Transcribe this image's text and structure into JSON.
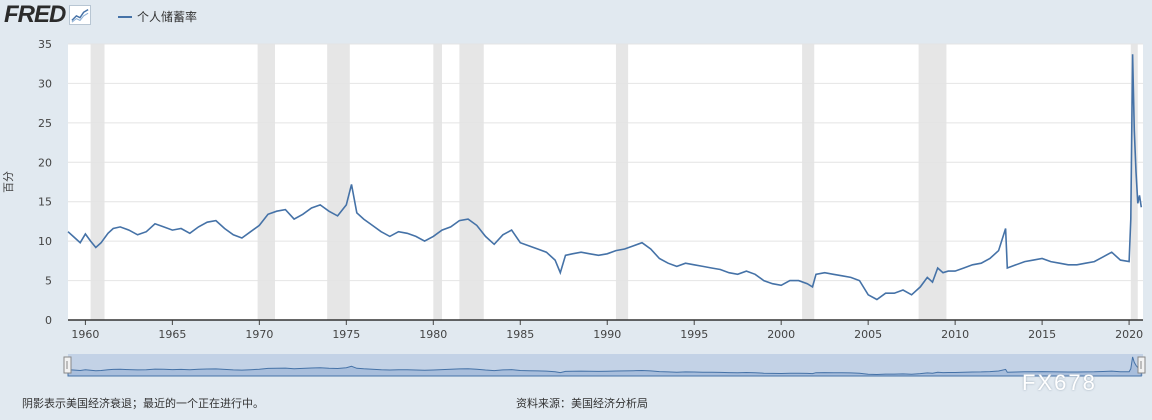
{
  "header": {
    "logo_text": "FRED",
    "logo_icon": "chart-line-icon",
    "legend_label": "个人储蓄率"
  },
  "footer": {
    "note": "阴影表示美国经济衰退；最近的一个正在进行中。",
    "source": "资料来源：美国经济分析局"
  },
  "watermark": "FX678",
  "chart_data": {
    "type": "line",
    "title": "",
    "ylabel": "百分",
    "xlabel": "",
    "ylim": [
      0,
      35
    ],
    "xlim": [
      1959.0,
      2020.8
    ],
    "yticks": [
      0,
      5,
      10,
      15,
      20,
      25,
      30,
      35
    ],
    "xticks": [
      1960,
      1965,
      1970,
      1975,
      1980,
      1985,
      1990,
      1995,
      2000,
      2005,
      2010,
      2015,
      2020
    ],
    "grid": "horizontal",
    "legend": "top-left",
    "color": "#4572a7",
    "recessions": [
      [
        1960.3,
        1961.1
      ],
      [
        1969.9,
        1970.9
      ],
      [
        1973.9,
        1975.2
      ],
      [
        1980.0,
        1980.5
      ],
      [
        1981.5,
        1982.9
      ],
      [
        1990.5,
        1991.2
      ],
      [
        2001.2,
        2001.9
      ],
      [
        2007.9,
        2009.5
      ],
      [
        2020.1,
        2020.5
      ]
    ],
    "series": [
      {
        "name": "个人储蓄率",
        "x": [
          1959.0,
          1959.3,
          1959.7,
          1960.0,
          1960.3,
          1960.6,
          1960.9,
          1961.3,
          1961.6,
          1962.0,
          1962.5,
          1963.0,
          1963.5,
          1964.0,
          1964.5,
          1965.0,
          1965.5,
          1966.0,
          1966.5,
          1967.0,
          1967.5,
          1968.0,
          1968.5,
          1969.0,
          1969.5,
          1970.0,
          1970.5,
          1971.0,
          1971.5,
          1972.0,
          1972.5,
          1973.0,
          1973.5,
          1974.0,
          1974.5,
          1975.0,
          1975.3,
          1975.6,
          1976.0,
          1976.5,
          1977.0,
          1977.5,
          1978.0,
          1978.5,
          1979.0,
          1979.5,
          1980.0,
          1980.5,
          1981.0,
          1981.5,
          1982.0,
          1982.5,
          1983.0,
          1983.5,
          1984.0,
          1984.5,
          1985.0,
          1985.5,
          1986.0,
          1986.5,
          1987.0,
          1987.3,
          1987.6,
          1988.0,
          1988.5,
          1989.0,
          1989.5,
          1990.0,
          1990.5,
          1991.0,
          1991.5,
          1992.0,
          1992.5,
          1993.0,
          1993.5,
          1994.0,
          1994.5,
          1995.0,
          1995.5,
          1996.0,
          1996.5,
          1997.0,
          1997.5,
          1998.0,
          1998.5,
          1999.0,
          1999.5,
          2000.0,
          2000.5,
          2001.0,
          2001.5,
          2001.8,
          2002.0,
          2002.5,
          2003.0,
          2003.5,
          2004.0,
          2004.5,
          2005.0,
          2005.5,
          2006.0,
          2006.5,
          2007.0,
          2007.5,
          2008.0,
          2008.4,
          2008.7,
          2009.0,
          2009.3,
          2009.6,
          2010.0,
          2010.5,
          2011.0,
          2011.5,
          2012.0,
          2012.5,
          2012.9,
          2013.0,
          2013.5,
          2014.0,
          2014.5,
          2015.0,
          2015.5,
          2016.0,
          2016.5,
          2017.0,
          2017.5,
          2018.0,
          2018.5,
          2019.0,
          2019.5,
          2020.0,
          2020.1,
          2020.2,
          2020.3,
          2020.4,
          2020.5,
          2020.6,
          2020.7
        ],
        "values": [
          11.2,
          10.6,
          9.8,
          10.9,
          10.0,
          9.2,
          9.8,
          11.0,
          11.6,
          11.8,
          11.4,
          10.8,
          11.2,
          12.2,
          11.8,
          11.4,
          11.6,
          11.0,
          11.8,
          12.4,
          12.6,
          11.6,
          10.8,
          10.4,
          11.2,
          12.0,
          13.4,
          13.8,
          14.0,
          12.8,
          13.4,
          14.2,
          14.6,
          13.8,
          13.2,
          14.6,
          17.2,
          13.6,
          12.8,
          12.0,
          11.2,
          10.6,
          11.2,
          11.0,
          10.6,
          10.0,
          10.6,
          11.4,
          11.8,
          12.6,
          12.8,
          12.0,
          10.6,
          9.6,
          10.8,
          11.4,
          9.8,
          9.4,
          9.0,
          8.6,
          7.6,
          6.0,
          8.2,
          8.4,
          8.6,
          8.4,
          8.2,
          8.4,
          8.8,
          9.0,
          9.4,
          9.8,
          9.0,
          7.8,
          7.2,
          6.8,
          7.2,
          7.0,
          6.8,
          6.6,
          6.4,
          6.0,
          5.8,
          6.2,
          5.8,
          5.0,
          4.6,
          4.4,
          5.0,
          5.0,
          4.6,
          4.2,
          5.8,
          6.0,
          5.8,
          5.6,
          5.4,
          5.0,
          3.2,
          2.6,
          3.4,
          3.4,
          3.8,
          3.2,
          4.2,
          5.4,
          4.8,
          6.6,
          6.0,
          6.2,
          6.2,
          6.6,
          7.0,
          7.2,
          7.8,
          8.8,
          11.6,
          6.6,
          7.0,
          7.4,
          7.6,
          7.8,
          7.4,
          7.2,
          7.0,
          7.0,
          7.2,
          7.4,
          8.0,
          8.6,
          7.6,
          7.4,
          12.8,
          33.7,
          24.0,
          18.8,
          14.8,
          15.8,
          14.3
        ]
      }
    ]
  }
}
